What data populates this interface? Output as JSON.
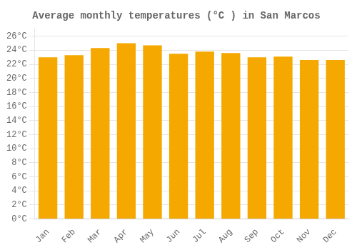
{
  "chart_data": {
    "type": "bar",
    "title": "Average monthly temperatures (°C ) in San Marcos",
    "categories": [
      "Jan",
      "Feb",
      "Mar",
      "Apr",
      "May",
      "Jun",
      "Jul",
      "Aug",
      "Sep",
      "Oct",
      "Nov",
      "Dec"
    ],
    "values": [
      23.0,
      23.3,
      24.3,
      25.0,
      24.7,
      23.5,
      23.8,
      23.6,
      23.0,
      23.1,
      22.6,
      22.6
    ],
    "color": "#F5A800",
    "ylim": [
      0,
      27
    ],
    "yticks": [
      {
        "value": 0,
        "label": "0°C"
      },
      {
        "value": 2,
        "label": "2°C"
      },
      {
        "value": 4,
        "label": "4°C"
      },
      {
        "value": 6,
        "label": "6°C"
      },
      {
        "value": 8,
        "label": "8°C"
      },
      {
        "value": 10,
        "label": "10°C"
      },
      {
        "value": 12,
        "label": "12°C"
      },
      {
        "value": 14,
        "label": "14°C"
      },
      {
        "value": 16,
        "label": "16°C"
      },
      {
        "value": 18,
        "label": "18°C"
      },
      {
        "value": 20,
        "label": "20°C"
      },
      {
        "value": 22,
        "label": "22°C"
      },
      {
        "value": 24,
        "label": "24°C"
      },
      {
        "value": 26,
        "label": "26°C"
      }
    ],
    "grid": "y"
  }
}
